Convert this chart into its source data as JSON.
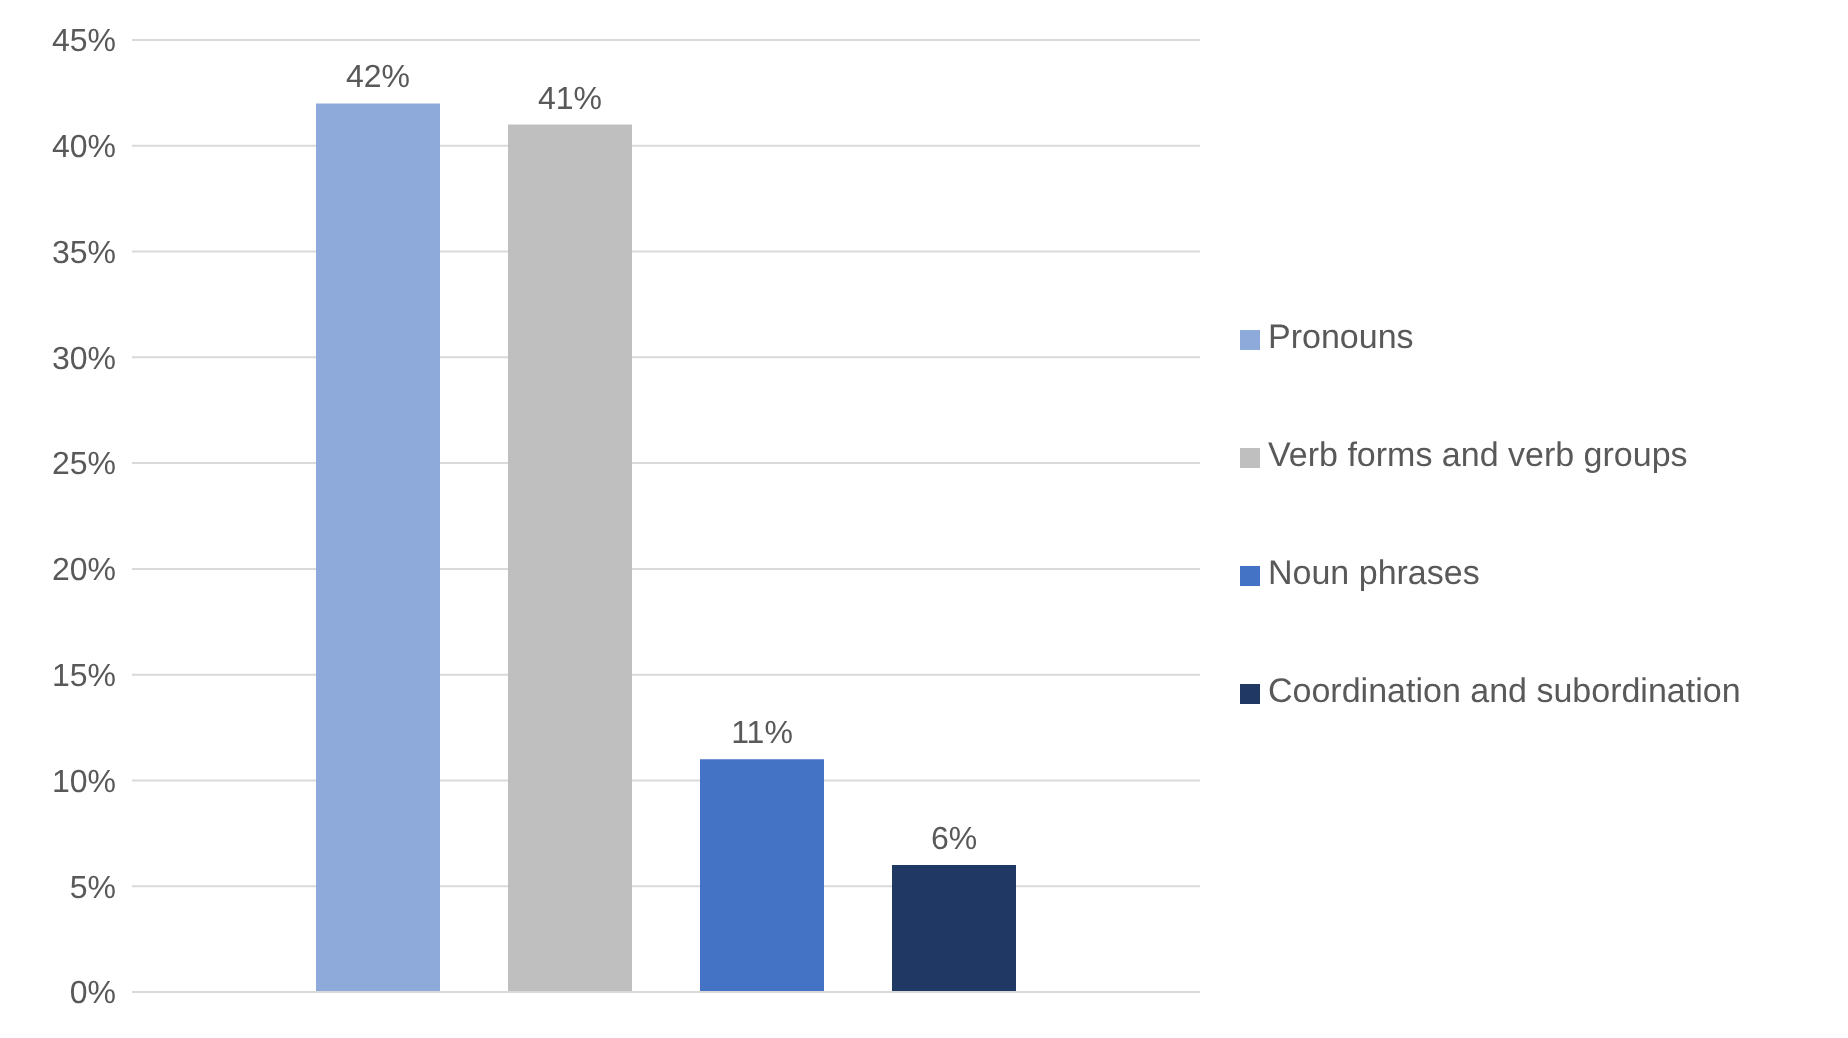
{
  "chart_data": {
    "type": "bar",
    "categories": [
      null
    ],
    "series": [
      {
        "name": "Pronouns",
        "color": "#8eaadb",
        "values": [
          42
        ],
        "value_labels": [
          "42%"
        ]
      },
      {
        "name": "Verb forms and verb groups",
        "color": "#bfbfbf",
        "values": [
          41
        ],
        "value_labels": [
          "41%"
        ]
      },
      {
        "name": "Noun phrases",
        "color": "#4472c4",
        "values": [
          11
        ],
        "value_labels": [
          "11%"
        ]
      },
      {
        "name": "Coordination and subordination",
        "color": "#203864",
        "values": [
          6
        ],
        "value_labels": [
          "6%"
        ]
      }
    ],
    "ylim": [
      0,
      45
    ],
    "yticks": [
      {
        "value": 0,
        "label": "0%"
      },
      {
        "value": 5,
        "label": "5%"
      },
      {
        "value": 10,
        "label": "10%"
      },
      {
        "value": 15,
        "label": "15%"
      },
      {
        "value": 20,
        "label": "20%"
      },
      {
        "value": 25,
        "label": "25%"
      },
      {
        "value": 30,
        "label": "30%"
      },
      {
        "value": 35,
        "label": "35%"
      },
      {
        "value": 40,
        "label": "40%"
      },
      {
        "value": 45,
        "label": "45%"
      }
    ],
    "grid": "y",
    "legend": "right"
  }
}
